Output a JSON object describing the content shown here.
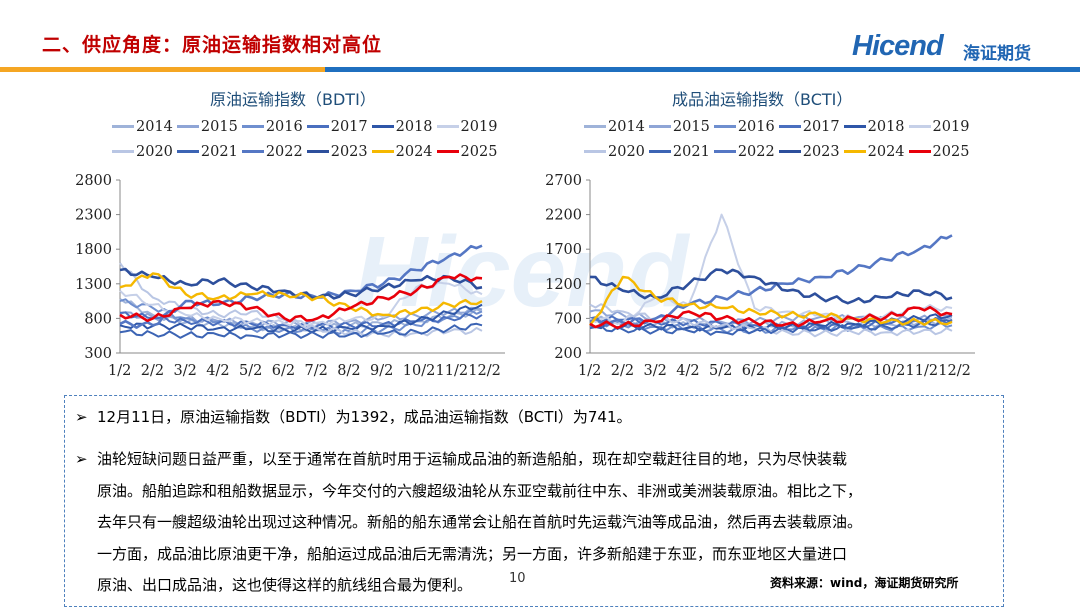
{
  "header": {
    "title": "二、供应角度：原油运输指数相对高位",
    "logo_text": "Hicend",
    "logo_cn": "海证期货"
  },
  "colors": {
    "title": "#c00000",
    "brand_blue": "#2166b3",
    "bar_orange": "#f5a623",
    "bar_blue": "#1f6fbf"
  },
  "legend_years": [
    "2014",
    "2015",
    "2016",
    "2017",
    "2018",
    "2019",
    "2020",
    "2021",
    "2022",
    "2023",
    "2024",
    "2025"
  ],
  "legend_colors": [
    "#9fb3d9",
    "#8fa5d6",
    "#6f8fcf",
    "#4a6fbf",
    "#2e56a8",
    "#c6d0e8",
    "#b9c6e4",
    "#3c64b4",
    "#5577c4",
    "#2d4f9c",
    "#f5b800",
    "#e8000b"
  ],
  "chart_data": [
    {
      "type": "line",
      "title": "原油运输指数（BDTI）",
      "x_labels": [
        "1/2",
        "2/2",
        "3/2",
        "4/2",
        "5/2",
        "6/2",
        "7/2",
        "8/2",
        "9/2",
        "10/2",
        "11/2",
        "12/2"
      ],
      "x_tick_text": [
        "1/2",
        "2/2",
        "3/2",
        "4/2",
        "5/2",
        "6/2",
        "7/2",
        "8/2",
        "9/2",
        "10/2",
        "11/2",
        "12/2"
      ],
      "y_ticks": [
        "2800",
        "2300",
        "1800",
        "1300",
        "800",
        "300"
      ],
      "ylim": [
        300,
        2800
      ],
      "series": [
        {
          "name": "2014",
          "values": [
            1080,
            850,
            740,
            720,
            680,
            650,
            660,
            700,
            720,
            760,
            830,
            900
          ]
        },
        {
          "name": "2015",
          "values": [
            870,
            820,
            800,
            760,
            740,
            730,
            720,
            760,
            800,
            840,
            900,
            930
          ]
        },
        {
          "name": "2016",
          "values": [
            1050,
            950,
            800,
            760,
            650,
            640,
            630,
            610,
            640,
            700,
            820,
            900
          ]
        },
        {
          "name": "2017",
          "values": [
            880,
            800,
            760,
            740,
            720,
            700,
            690,
            700,
            720,
            760,
            800,
            850
          ]
        },
        {
          "name": "2018",
          "values": [
            700,
            690,
            680,
            660,
            650,
            640,
            640,
            650,
            690,
            760,
            880,
            1000
          ]
        },
        {
          "name": "2019",
          "values": [
            1200,
            1000,
            850,
            800,
            760,
            730,
            740,
            780,
            820,
            1250,
            1300,
            1150
          ]
        },
        {
          "name": "2020",
          "values": [
            1600,
            1100,
            950,
            850,
            900,
            780,
            650,
            600,
            560,
            590,
            610,
            620
          ]
        },
        {
          "name": "2021",
          "values": [
            600,
            580,
            560,
            560,
            550,
            560,
            560,
            570,
            580,
            610,
            650,
            700
          ]
        },
        {
          "name": "2022",
          "values": [
            720,
            700,
            1050,
            1000,
            1100,
            1150,
            1100,
            1200,
            1300,
            1500,
            1700,
            1850
          ]
        },
        {
          "name": "2023",
          "values": [
            1500,
            1400,
            1300,
            1350,
            1250,
            1200,
            1100,
            1150,
            1250,
            1350,
            1400,
            1250
          ]
        },
        {
          "name": "2024",
          "values": [
            1250,
            1450,
            1150,
            1100,
            1150,
            1150,
            1100,
            950,
            850,
            900,
            1000,
            1050
          ]
        },
        {
          "name": "2025",
          "values": [
            850,
            800,
            950,
            1050,
            950,
            800,
            800,
            950,
            1100,
            1200,
            1400,
            1380
          ]
        }
      ]
    },
    {
      "type": "line",
      "title": "成品油运输指数（BCTI）",
      "x_labels": [
        "1/2",
        "2/2",
        "3/2",
        "4/2",
        "5/2",
        "6/2",
        "7/2",
        "8/2",
        "9/2",
        "10/2",
        "11/2",
        "12/2"
      ],
      "x_tick_text": [
        "1/2",
        "2/2",
        "3/2",
        "4/2",
        "5/2",
        "6/2",
        "7/2",
        "8/2",
        "9/2",
        "10/2",
        "11/2",
        "12/2"
      ],
      "y_ticks": [
        "2700",
        "2200",
        "1700",
        "1200",
        "700",
        "200"
      ],
      "ylim": [
        200,
        2700
      ],
      "series": [
        {
          "name": "2014",
          "values": [
            700,
            650,
            620,
            600,
            580,
            600,
            620,
            640,
            620,
            620,
            640,
            680
          ]
        },
        {
          "name": "2015",
          "values": [
            800,
            750,
            700,
            680,
            650,
            660,
            700,
            720,
            700,
            680,
            700,
            720
          ]
        },
        {
          "name": "2016",
          "values": [
            650,
            600,
            580,
            560,
            540,
            520,
            540,
            560,
            560,
            550,
            580,
            600
          ]
        },
        {
          "name": "2017",
          "values": [
            700,
            680,
            650,
            640,
            620,
            600,
            580,
            580,
            600,
            620,
            650,
            680
          ]
        },
        {
          "name": "2018",
          "values": [
            600,
            580,
            580,
            570,
            560,
            560,
            580,
            600,
            620,
            650,
            700,
            750
          ]
        },
        {
          "name": "2019",
          "values": [
            700,
            650,
            1000,
            900,
            2200,
            850,
            800,
            750,
            700,
            750,
            850,
            850
          ]
        },
        {
          "name": "2020",
          "values": [
            900,
            800,
            700,
            650,
            600,
            550,
            500,
            480,
            500,
            500,
            500,
            520
          ]
        },
        {
          "name": "2021",
          "values": [
            560,
            540,
            520,
            520,
            500,
            520,
            540,
            560,
            560,
            580,
            620,
            650
          ]
        },
        {
          "name": "2022",
          "values": [
            650,
            640,
            700,
            900,
            1000,
            1100,
            1200,
            1300,
            1400,
            1550,
            1700,
            1900
          ]
        },
        {
          "name": "2023",
          "values": [
            1300,
            1100,
            1000,
            1200,
            1400,
            1300,
            1100,
            1000,
            950,
            1000,
            1100,
            1000
          ]
        },
        {
          "name": "2024",
          "values": [
            600,
            1300,
            1000,
            900,
            850,
            800,
            750,
            750,
            700,
            650,
            650,
            650
          ]
        },
        {
          "name": "2025",
          "values": [
            620,
            600,
            650,
            800,
            700,
            650,
            620,
            650,
            700,
            720,
            850,
            760
          ]
        }
      ]
    }
  ],
  "notes": {
    "line1": "12月11日，原油运输指数（BDTI）为1392，成品油运输指数（BCTI）为741。",
    "para2": [
      "油轮短缺问题日益严重，以至于通常在首航时用于运输成品油的新造船舶，现在却空载赶往目的地，只为尽快装载",
      "原油。船舶追踪和租船数据显示，今年交付的六艘超级油轮从东亚空载前往中东、非洲或美洲装载原油。相比之下，",
      "去年只有一艘超级油轮出现过这种情况。新船的船东通常会让船在首航时先运载汽油等成品油，然后再去装载原油。",
      "一方面，成品油比原油更干净，船舶运过成品油后无需清洗；另一方面，许多新船建于东亚，而东亚地区大量进口",
      "原油、出口成品油，这也使得这样的航线组合最为便利。"
    ],
    "bullet_glyph": "➢"
  },
  "source": "资料来源：wind，海证期货研究所",
  "page_number": "10"
}
